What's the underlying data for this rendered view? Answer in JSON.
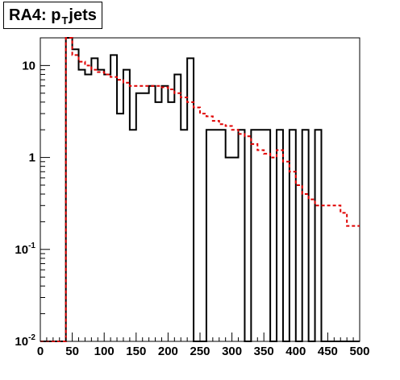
{
  "title": {
    "main": "RA4: p",
    "sub": "T",
    "rest": " jets"
  },
  "chart_data": {
    "type": "histogram",
    "title": "RA4: pT jets",
    "xlabel": "",
    "ylabel": "",
    "xlim": [
      0,
      500
    ],
    "ylim": [
      0.01,
      20
    ],
    "log_y": true,
    "bin_width": 10,
    "x_ticks": [
      "0",
      "50",
      "100",
      "150",
      "200",
      "250",
      "300",
      "350",
      "400",
      "450",
      "500"
    ],
    "y_ticks": [
      {
        "value": 0.01,
        "base": "10",
        "exp": "-2"
      },
      {
        "value": 0.1,
        "base": "10",
        "exp": "-1"
      },
      {
        "value": 1,
        "label": "1"
      },
      {
        "value": 10,
        "label": "10"
      }
    ],
    "series": [
      {
        "style": "black-solid",
        "bin_edges_start": 0,
        "values": [
          0.01,
          0.01,
          0.01,
          0.01,
          20,
          15,
          9,
          8,
          12,
          9,
          8,
          13,
          3,
          9,
          2,
          5,
          5,
          6,
          4,
          6,
          4,
          8,
          2,
          12,
          0.01,
          0.01,
          2,
          2,
          2,
          1,
          1,
          2,
          0.01,
          2,
          2,
          2,
          0.01,
          2,
          0.01,
          2,
          0.01,
          2,
          0.01,
          2,
          0.01,
          0.01,
          0.01,
          0.01,
          0.01,
          0.01
        ]
      },
      {
        "style": "red-dashed",
        "bin_edges_start": 0,
        "values": [
          0.01,
          0.01,
          0.01,
          0.01,
          20,
          13,
          11,
          10,
          9,
          8.5,
          8,
          7.5,
          7,
          6.5,
          6,
          6,
          6,
          6,
          6,
          5.8,
          5.5,
          5,
          4.5,
          4,
          3.5,
          3,
          2.8,
          2.5,
          2.3,
          2.2,
          2,
          1.8,
          1.7,
          1.4,
          1.2,
          1.1,
          1,
          1.2,
          0.9,
          0.7,
          0.5,
          0.4,
          0.35,
          0.3,
          0.3,
          0.3,
          0.3,
          0.25,
          0.18,
          0.18
        ]
      }
    ],
    "colors": {
      "black_series": "#000000",
      "red_series": "#e00000"
    }
  }
}
